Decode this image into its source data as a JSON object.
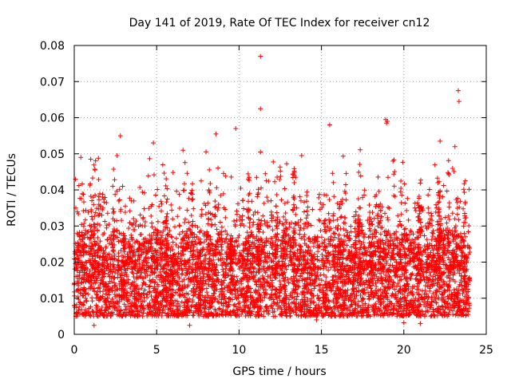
{
  "chart_data": {
    "type": "scatter",
    "title": "Day 141 of 2019, Rate Of TEC Index for receiver cn12",
    "xlabel": "GPS time / hours",
    "ylabel": "ROTI / TECUs",
    "xlim": [
      0,
      25
    ],
    "ylim": [
      0,
      0.08
    ],
    "xticks": [
      0,
      5,
      10,
      15,
      20,
      25
    ],
    "xtick_labels": [
      "0",
      "5",
      "10",
      "15",
      "20",
      "25"
    ],
    "yticks": [
      0,
      0.01,
      0.02,
      0.03,
      0.04,
      0.05,
      0.06,
      0.07,
      0.08
    ],
    "ytick_labels": [
      "0",
      "0.01",
      "0.02",
      "0.03",
      "0.04",
      "0.05",
      "0.06",
      "0.07",
      "0.08"
    ],
    "grid": true,
    "marker": "+",
    "series": [
      {
        "name": "ROTI",
        "color": "#ff0000",
        "x_range": [
          0,
          24
        ],
        "typical_band": [
          0.005,
          0.025
        ],
        "points": [
          [
            11.3,
            0.077
          ],
          [
            11.3,
            0.0625
          ],
          [
            23.3,
            0.0675
          ],
          [
            23.35,
            0.0645
          ],
          [
            18.9,
            0.0595
          ],
          [
            19.0,
            0.059
          ],
          [
            18.95,
            0.0585
          ],
          [
            9.8,
            0.057
          ],
          [
            2.8,
            0.055
          ],
          [
            15.5,
            0.058
          ],
          [
            8.6,
            0.0555
          ],
          [
            4.8,
            0.053
          ],
          [
            22.2,
            0.0535
          ],
          [
            23.1,
            0.052
          ],
          [
            6.6,
            0.051
          ],
          [
            11.3,
            0.0505
          ],
          [
            2.6,
            0.0495
          ],
          [
            13.8,
            0.0495
          ],
          [
            7.7,
            0.0425
          ],
          [
            13.5,
            0.035
          ],
          [
            1.0,
            0.0485
          ],
          [
            0.4,
            0.049
          ],
          [
            20.0,
            0.0032
          ],
          [
            1.2,
            0.0025
          ],
          [
            7.0,
            0.0025
          ],
          [
            21.0,
            0.003
          ],
          [
            14.7,
            0.004
          ]
        ]
      }
    ]
  }
}
